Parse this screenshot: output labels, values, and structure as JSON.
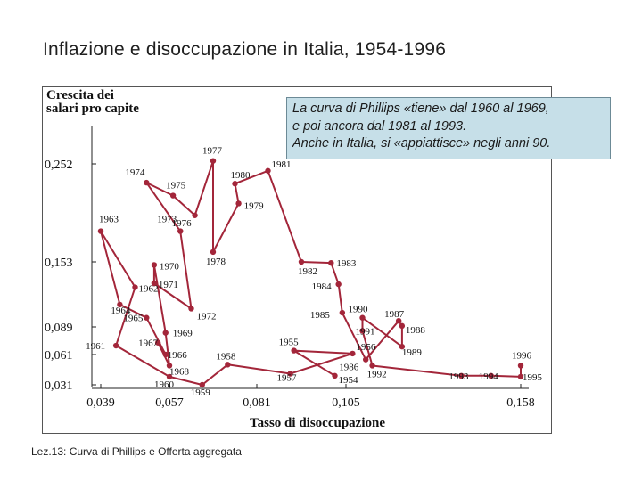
{
  "page": {
    "title": "Inflazione e disoccupazione in Italia, 1954-1996",
    "footer": "Lez.13: Curva di Phillips e Offerta aggregata",
    "callout": {
      "lines": [
        "La curva di Phillips «tiene» dal 1960 al 1969,",
        " e poi ancora dal 1981 al 1993.",
        "Anche in Italia, si «appiattisce» negli anni 90."
      ],
      "background": "#c6dfe8"
    }
  },
  "chart_data": {
    "type": "line",
    "ylabel_lines": [
      "Crescita dei",
      "salari pro capite"
    ],
    "xlabel": "Tasso di disoccupazione",
    "x_ticks": [
      "0,039",
      "0,057",
      "0,081",
      "0,105",
      "0,158"
    ],
    "y_ticks": [
      "0,252",
      "0,153",
      "0,089",
      "0,061",
      "0,031"
    ],
    "line_color": "#a3263a",
    "grid": false,
    "series": [
      {
        "points": [
          {
            "label": "1954",
            "x": 0.102,
            "y": 0.04
          },
          {
            "label": "1955",
            "x": 0.091,
            "y": 0.065
          },
          {
            "label": "1956",
            "x": 0.107,
            "y": 0.062
          },
          {
            "label": "1957",
            "x": 0.09,
            "y": 0.042
          },
          {
            "label": "1958",
            "x": 0.073,
            "y": 0.051
          },
          {
            "label": "1959",
            "x": 0.066,
            "y": 0.031
          },
          {
            "label": "1960",
            "x": 0.057,
            "y": 0.039
          },
          {
            "label": "1961",
            "x": 0.043,
            "y": 0.07
          },
          {
            "label": "1962",
            "x": 0.048,
            "y": 0.128
          },
          {
            "label": "1963",
            "x": 0.039,
            "y": 0.184
          },
          {
            "label": "1964",
            "x": 0.044,
            "y": 0.111
          },
          {
            "label": "1965",
            "x": 0.051,
            "y": 0.098
          },
          {
            "label": "1966",
            "x": 0.056,
            "y": 0.061
          },
          {
            "label": "1967",
            "x": 0.054,
            "y": 0.073
          },
          {
            "label": "1968",
            "x": 0.057,
            "y": 0.05
          },
          {
            "label": "1969",
            "x": 0.056,
            "y": 0.083
          },
          {
            "label": "1970",
            "x": 0.053,
            "y": 0.15
          },
          {
            "label": "1971",
            "x": 0.053,
            "y": 0.132
          },
          {
            "label": "1972",
            "x": 0.063,
            "y": 0.107
          },
          {
            "label": "1973",
            "x": 0.06,
            "y": 0.184
          },
          {
            "label": "1974",
            "x": 0.051,
            "y": 0.233
          },
          {
            "label": "1975",
            "x": 0.058,
            "y": 0.22
          },
          {
            "label": "1976",
            "x": 0.064,
            "y": 0.2
          },
          {
            "label": "1977",
            "x": 0.069,
            "y": 0.255
          },
          {
            "label": "1978",
            "x": 0.069,
            "y": 0.163
          },
          {
            "label": "1979",
            "x": 0.076,
            "y": 0.212
          },
          {
            "label": "1980",
            "x": 0.075,
            "y": 0.232
          },
          {
            "label": "1981",
            "x": 0.084,
            "y": 0.245
          },
          {
            "label": "1982",
            "x": 0.093,
            "y": 0.153
          },
          {
            "label": "1983",
            "x": 0.101,
            "y": 0.152
          },
          {
            "label": "1984",
            "x": 0.103,
            "y": 0.131
          },
          {
            "label": "1985",
            "x": 0.104,
            "y": 0.103
          },
          {
            "label": "1986",
            "x": 0.111,
            "y": 0.056
          },
          {
            "label": "1987",
            "x": 0.121,
            "y": 0.095
          },
          {
            "label": "1988",
            "x": 0.122,
            "y": 0.09
          },
          {
            "label": "1989",
            "x": 0.122,
            "y": 0.069
          },
          {
            "label": "1990",
            "x": 0.11,
            "y": 0.098
          },
          {
            "label": "1991",
            "x": 0.11,
            "y": 0.085
          },
          {
            "label": "1992",
            "x": 0.113,
            "y": 0.05
          },
          {
            "label": "1993",
            "x": 0.14,
            "y": 0.04
          },
          {
            "label": "1994",
            "x": 0.149,
            "y": 0.04
          },
          {
            "label": "1995",
            "x": 0.158,
            "y": 0.039
          },
          {
            "label": "1996",
            "x": 0.158,
            "y": 0.05
          }
        ]
      }
    ]
  }
}
